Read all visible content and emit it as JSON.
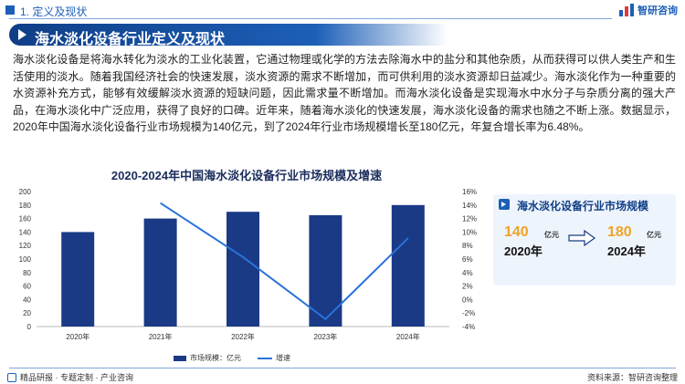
{
  "header": {
    "section": "1. 定义及现状",
    "logo": "智研咨询"
  },
  "title": "海水淡化设备行业定义及现状",
  "paragraph": "海水淡化设备是将海水转化为淡水的工业化装置，它通过物理或化学的方法去除海水中的盐分和其他杂质，从而获得可以供人类生产和生活使用的淡水。随着我国经济社会的快速发展，淡水资源的需求不断增加，而可供利用的淡水资源却日益减少。海水淡化作为一种重要的水资源补充方式，能够有效缓解淡水资源的短缺问题，因此需求量不断增加。而海水淡化设备是实现海水中水分子与杂质分离的强大产品，在海水淡化中广泛应用，获得了良好的口碑。近年来，随着海水淡化的快速发展，海水淡化设备的需求也随之不断上涨。数据显示，2020年中国海水淡化设备行业市场规模为140亿元，到了2024年行业市场规模增长至180亿元，年复合增长率为6.48%。",
  "chart_data": {
    "type": "bar",
    "title": "2020-2024年中国海水淡化设备行业市场规模及增速",
    "categories": [
      "2020年",
      "2021年",
      "2022年",
      "2023年",
      "2024年"
    ],
    "series": [
      {
        "name": "市场规模：亿元",
        "type": "bar",
        "axis": "left",
        "values": [
          140,
          160,
          170,
          165,
          180
        ]
      },
      {
        "name": "增速",
        "type": "line",
        "axis": "right",
        "values": [
          null,
          14.3,
          6.3,
          -2.9,
          9.1
        ]
      }
    ],
    "y_left": {
      "min": 0,
      "max": 200,
      "ticks": [
        0,
        20,
        40,
        60,
        80,
        100,
        120,
        140,
        160,
        180,
        200
      ]
    },
    "y_right": {
      "min": -4,
      "max": 16,
      "ticks": [
        "-4%",
        "-2%",
        "0%",
        "2%",
        "4%",
        "6%",
        "8%",
        "10%",
        "12%",
        "14%",
        "16%"
      ]
    },
    "grid": false,
    "legend": "bottom",
    "colors": {
      "bar": "#1a3a86",
      "line": "#2a73d8"
    }
  },
  "panel": {
    "title": "海水淡化设备行业市场规模",
    "start": {
      "value": "140",
      "unit": "亿元",
      "year": "2020年"
    },
    "end": {
      "value": "180",
      "unit": "亿元",
      "year": "2024年"
    }
  },
  "footer": {
    "tags": "精品研报 · 专题定制 · 产业咨询",
    "source": "资料来源：智研咨询整理"
  }
}
